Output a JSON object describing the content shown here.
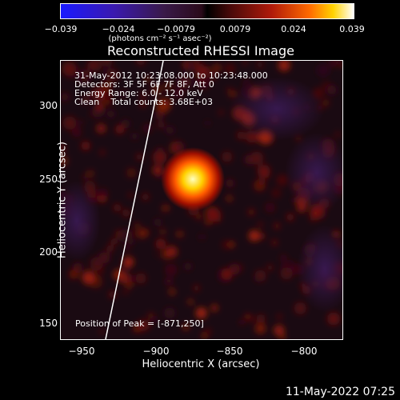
{
  "colorbar": {
    "ticks": [
      "−0.039",
      "−0.024",
      "−0.0079",
      "0.0079",
      "0.024",
      "0.039"
    ],
    "units_label": "(photons cm⁻² s⁻¹ asec⁻²)"
  },
  "title": "Reconstructed RHESSI Image",
  "info_lines": [
    "31-May-2012 10:23:08.000 to 10:23:48.000",
    "Detectors: 3F 5F 6F 7F 8F, Att 0",
    "Energy Range: 6.0 - 12.0 keV",
    "Clean    Total counts: 3.68E+03"
  ],
  "peak_label": "Position of Peak = [-871,250]",
  "x_ticks": [
    "−950",
    "−900",
    "−850",
    "−800"
  ],
  "y_ticks": [
    "300",
    "250",
    "200",
    "150"
  ],
  "xlabel": "Heliocentric X (arcsec)",
  "ylabel": "Heliocentric Y (arcsec)",
  "date_stamp": "11-May-2022 07:25",
  "colors": {
    "background": "#000000",
    "peak": "#ffffb0",
    "limb": "#ffffff"
  }
}
